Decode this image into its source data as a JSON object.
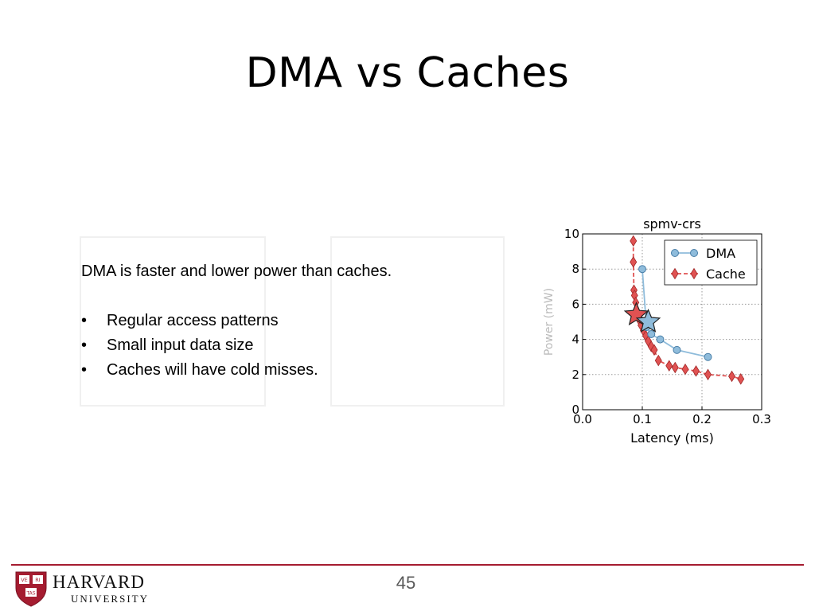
{
  "slide": {
    "title": "DMA vs Caches",
    "lead": "DMA is faster and lower power than caches.",
    "bullets": [
      "Regular access patterns",
      "Small input data size",
      "Caches will have cold misses."
    ],
    "page_number": "45"
  },
  "logo": {
    "name": "HARVARD",
    "sub": "UNIVERSITY",
    "shield_text": [
      "VE",
      "RI",
      "TAS"
    ],
    "color": "#a51c30"
  },
  "chart_data": {
    "type": "line",
    "title": "spmv-crs",
    "xlabel": "Latency (ms)",
    "ylabel": "Power (mW)",
    "xlim": [
      0.0,
      0.3
    ],
    "ylim": [
      0,
      10
    ],
    "xticks": [
      0.0,
      0.1,
      0.2,
      0.3
    ],
    "xtick_labels": [
      "0.0",
      "0.1",
      "0.2",
      "0.3"
    ],
    "yticks": [
      0,
      2,
      4,
      6,
      8,
      10
    ],
    "ytick_labels": [
      "0",
      "2",
      "4",
      "6",
      "8",
      "10"
    ],
    "grid": true,
    "legend_position": "top-right",
    "series": [
      {
        "name": "DMA",
        "color": "#8fbcdb",
        "edge_color": "#4a7fa8",
        "marker": "circle",
        "line_style": "solid",
        "points": [
          [
            0.1,
            8.0
          ],
          [
            0.107,
            4.7
          ],
          [
            0.115,
            4.3
          ],
          [
            0.13,
            4.0
          ],
          [
            0.158,
            3.4
          ],
          [
            0.21,
            3.0
          ]
        ],
        "star": [
          0.11,
          5.0
        ]
      },
      {
        "name": "Cache",
        "color": "#e05252",
        "edge_color": "#a02828",
        "marker": "diamond",
        "line_style": "dashed",
        "points": [
          [
            0.085,
            9.6
          ],
          [
            0.085,
            8.4
          ],
          [
            0.086,
            6.8
          ],
          [
            0.087,
            6.5
          ],
          [
            0.089,
            6.1
          ],
          [
            0.092,
            5.4
          ],
          [
            0.095,
            5.1
          ],
          [
            0.098,
            4.8
          ],
          [
            0.102,
            4.5
          ],
          [
            0.106,
            4.2
          ],
          [
            0.11,
            3.9
          ],
          [
            0.115,
            3.6
          ],
          [
            0.12,
            3.4
          ],
          [
            0.127,
            2.8
          ],
          [
            0.145,
            2.5
          ],
          [
            0.155,
            2.4
          ],
          [
            0.172,
            2.3
          ],
          [
            0.19,
            2.2
          ],
          [
            0.21,
            2.0
          ],
          [
            0.25,
            1.9
          ],
          [
            0.265,
            1.75
          ]
        ],
        "star": [
          0.09,
          5.4
        ]
      }
    ]
  }
}
